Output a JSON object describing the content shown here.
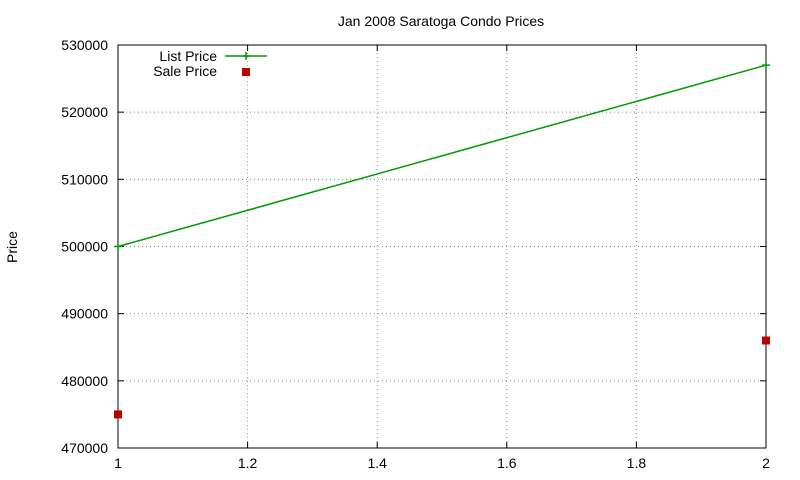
{
  "chart_data": {
    "type": "line",
    "title": "Jan 2008 Saratoga Condo Prices",
    "xlabel": "",
    "ylabel": "Price",
    "xlim": [
      1,
      2
    ],
    "ylim": [
      470000,
      530000
    ],
    "x_ticks": [
      1,
      1.2,
      1.4,
      1.6,
      1.8,
      2
    ],
    "x_tick_labels": [
      "1",
      "1.2",
      "1.4",
      "1.6",
      "1.8",
      "2"
    ],
    "y_ticks": [
      470000,
      480000,
      490000,
      500000,
      510000,
      520000,
      530000
    ],
    "y_tick_labels": [
      "470000",
      "480000",
      "490000",
      "500000",
      "510000",
      "520000",
      "530000"
    ],
    "grid": true,
    "legend_position": "top-left",
    "series": [
      {
        "name": "List Price",
        "style": "lines+points",
        "color": "#009900",
        "points": [
          [
            1,
            500000
          ],
          [
            2,
            527000
          ]
        ]
      },
      {
        "name": "Sale Price",
        "style": "points",
        "color": "#bb0000",
        "points": [
          [
            1,
            475000
          ],
          [
            2,
            486000
          ]
        ]
      }
    ]
  }
}
